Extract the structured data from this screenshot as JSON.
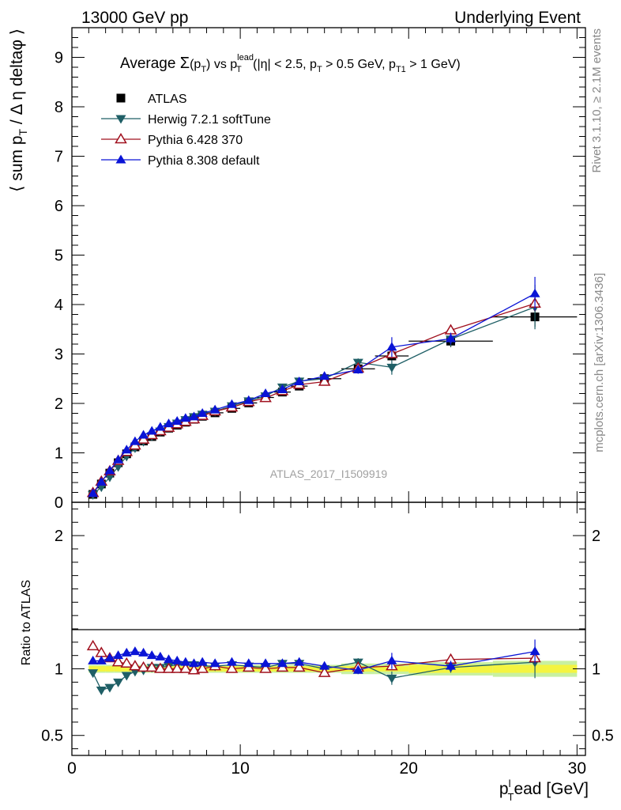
{
  "header": {
    "left": "13000 GeV pp",
    "right": "Underlying Event"
  },
  "side_labels": {
    "rivet": "Rivet 3.1.10, ≥ 2.1M events",
    "mcplots": "mcplots.cern.ch [arXiv:1306.3436]"
  },
  "watermark": "ATLAS_2017_I1509919",
  "chart_data": {
    "type": "scatter",
    "title": {
      "prefix": "Average ",
      "sigma": "Σ",
      "pt_open": "(p",
      "pt_sub": "T",
      "pt_close": ")",
      "vs": " vs p",
      "vs_sup": "lead",
      "vs_sub": "T",
      "cut1": " (|η| < 2.5, p",
      "cut1_sub": "T",
      "cut2": " > 0.5 GeV, p",
      "cut2_sub": "T1",
      "cut3": " > 1 GeV)"
    },
    "ylabel": {
      "main": "⟨ sum p",
      "sub": "T",
      "rest": " / Δ η deltaφ ⟩"
    },
    "ratio_ylabel": "Ratio to ATLAS",
    "xlabel": {
      "p": "p",
      "sup": "l",
      "sub": "T",
      "rest": "ead [GeV]"
    },
    "xlim": [
      0,
      30.5
    ],
    "ylim": [
      0,
      9.6
    ],
    "ratio_ylim": [
      0.35,
      2.25
    ],
    "x_ticks": [
      "0",
      "10",
      "20",
      "30"
    ],
    "y_ticks": [
      "0",
      "1",
      "2",
      "3",
      "4",
      "5",
      "6",
      "7",
      "8",
      "9"
    ],
    "ratio_ticks": [
      "0.5",
      "1",
      "2"
    ],
    "legend_position": "top-left",
    "x": [
      1.25,
      1.75,
      2.25,
      2.75,
      3.25,
      3.75,
      4.25,
      4.75,
      5.25,
      5.75,
      6.25,
      6.75,
      7.25,
      7.75,
      8.5,
      9.5,
      10.5,
      11.5,
      12.5,
      13.5,
      15.0,
      17.0,
      19.0,
      22.5,
      27.5
    ],
    "x_err": [
      0.25,
      0.25,
      0.25,
      0.25,
      0.25,
      0.25,
      0.25,
      0.25,
      0.25,
      0.25,
      0.25,
      0.25,
      0.25,
      0.25,
      0.5,
      0.5,
      0.5,
      0.5,
      0.5,
      0.5,
      1.0,
      1.0,
      1.0,
      2.5,
      2.5
    ],
    "series": [
      {
        "name": "ATLAS",
        "color": "#000000",
        "marker": "square",
        "values": [
          0.16,
          0.37,
          0.59,
          0.8,
          0.98,
          1.12,
          1.24,
          1.33,
          1.42,
          1.5,
          1.56,
          1.62,
          1.68,
          1.74,
          1.81,
          1.9,
          2.01,
          2.12,
          2.23,
          2.35,
          2.5,
          2.7,
          2.96,
          3.26,
          3.75
        ],
        "errors": [
          0.02,
          0.02,
          0.02,
          0.02,
          0.02,
          0.02,
          0.02,
          0.02,
          0.02,
          0.02,
          0.02,
          0.02,
          0.02,
          0.02,
          0.03,
          0.03,
          0.03,
          0.04,
          0.04,
          0.05,
          0.06,
          0.08,
          0.1,
          0.12,
          0.2
        ],
        "ratio": [
          1.0,
          1.0,
          1.0,
          1.0,
          1.0,
          1.0,
          1.0,
          1.0,
          1.0,
          1.0,
          1.0,
          1.0,
          1.0,
          1.0,
          1.0,
          1.0,
          1.0,
          1.0,
          1.0,
          1.0,
          1.0,
          1.0,
          1.0,
          1.0,
          1.0
        ]
      },
      {
        "name": "Herwig 7.2.1 softTune",
        "color": "#1f5f66",
        "marker": "triangle-down",
        "values": [
          0.155,
          0.31,
          0.51,
          0.72,
          0.93,
          1.1,
          1.23,
          1.34,
          1.44,
          1.53,
          1.6,
          1.67,
          1.73,
          1.78,
          1.84,
          1.95,
          2.05,
          2.15,
          2.33,
          2.45,
          2.5,
          2.83,
          2.73,
          3.3,
          3.95
        ],
        "errors": [
          0.01,
          0.01,
          0.01,
          0.01,
          0.01,
          0.01,
          0.01,
          0.01,
          0.01,
          0.01,
          0.01,
          0.01,
          0.02,
          0.02,
          0.02,
          0.03,
          0.03,
          0.04,
          0.04,
          0.05,
          0.06,
          0.08,
          0.15,
          0.15,
          0.45
        ],
        "ratio": [
          0.97,
          0.84,
          0.86,
          0.9,
          0.95,
          0.98,
          0.99,
          1.01,
          1.01,
          1.02,
          1.03,
          1.03,
          1.03,
          1.02,
          1.02,
          1.03,
          1.02,
          1.01,
          1.04,
          1.04,
          1.0,
          1.05,
          0.93,
          1.01,
          1.05
        ],
        "ratio_errors": [
          0.01,
          0.01,
          0.01,
          0.01,
          0.01,
          0.01,
          0.01,
          0.01,
          0.01,
          0.01,
          0.01,
          0.01,
          0.01,
          0.01,
          0.01,
          0.02,
          0.02,
          0.02,
          0.02,
          0.02,
          0.02,
          0.03,
          0.05,
          0.04,
          0.12
        ]
      },
      {
        "name": "Pythia 6.428 370",
        "color": "#a0101e",
        "marker": "triangle-open",
        "values": [
          0.19,
          0.42,
          0.63,
          0.84,
          1.02,
          1.15,
          1.27,
          1.36,
          1.44,
          1.51,
          1.58,
          1.63,
          1.68,
          1.75,
          1.84,
          1.92,
          2.03,
          2.11,
          2.25,
          2.38,
          2.44,
          2.71,
          3.0,
          3.48,
          4.02
        ],
        "errors": [
          0.01,
          0.01,
          0.01,
          0.01,
          0.01,
          0.01,
          0.01,
          0.01,
          0.01,
          0.01,
          0.01,
          0.01,
          0.02,
          0.02,
          0.02,
          0.03,
          0.03,
          0.04,
          0.04,
          0.05,
          0.06,
          0.07,
          0.09,
          0.11,
          0.15
        ],
        "ratio": [
          1.17,
          1.12,
          1.08,
          1.05,
          1.04,
          1.02,
          1.01,
          1.01,
          1.0,
          1.0,
          1.0,
          1.0,
          0.99,
          1.0,
          1.02,
          1.0,
          1.01,
          1.0,
          1.01,
          1.01,
          0.97,
          1.01,
          1.02,
          1.07,
          1.08
        ],
        "ratio_errors": [
          0.01,
          0.01,
          0.01,
          0.01,
          0.01,
          0.01,
          0.01,
          0.01,
          0.01,
          0.01,
          0.01,
          0.01,
          0.01,
          0.01,
          0.01,
          0.01,
          0.01,
          0.02,
          0.02,
          0.02,
          0.02,
          0.03,
          0.03,
          0.03,
          0.04
        ]
      },
      {
        "name": "Pythia 8.308 default",
        "color": "#0a14d6",
        "marker": "triangle-up",
        "values": [
          0.18,
          0.41,
          0.64,
          0.86,
          1.06,
          1.23,
          1.36,
          1.44,
          1.52,
          1.59,
          1.64,
          1.7,
          1.73,
          1.8,
          1.87,
          1.98,
          2.06,
          2.2,
          2.28,
          2.44,
          2.55,
          2.68,
          3.14,
          3.31,
          4.22
        ],
        "errors": [
          0.01,
          0.01,
          0.01,
          0.01,
          0.01,
          0.01,
          0.01,
          0.01,
          0.01,
          0.01,
          0.01,
          0.01,
          0.02,
          0.02,
          0.02,
          0.03,
          0.03,
          0.04,
          0.04,
          0.05,
          0.06,
          0.08,
          0.2,
          0.12,
          0.34
        ],
        "ratio": [
          1.06,
          1.06,
          1.08,
          1.1,
          1.12,
          1.13,
          1.12,
          1.1,
          1.09,
          1.07,
          1.06,
          1.05,
          1.04,
          1.05,
          1.04,
          1.05,
          1.04,
          1.04,
          1.04,
          1.05,
          1.02,
          0.99,
          1.06,
          1.02,
          1.13
        ],
        "ratio_errors": [
          0.01,
          0.01,
          0.01,
          0.01,
          0.01,
          0.01,
          0.01,
          0.01,
          0.01,
          0.01,
          0.01,
          0.01,
          0.01,
          0.01,
          0.01,
          0.02,
          0.02,
          0.02,
          0.02,
          0.02,
          0.02,
          0.03,
          0.06,
          0.04,
          0.09
        ]
      }
    ],
    "ratio_band": {
      "inner_color": "#f4f440",
      "outer_color": "#c8f0a0",
      "inner": [
        0.02,
        0.02,
        0.02,
        0.02,
        0.02,
        0.02,
        0.02,
        0.02,
        0.02,
        0.02,
        0.02,
        0.02,
        0.02,
        0.02,
        0.02,
        0.02,
        0.02,
        0.02,
        0.02,
        0.02,
        0.02,
        0.02,
        0.02,
        0.03,
        0.03
      ],
      "outer": [
        0.03,
        0.03,
        0.03,
        0.03,
        0.03,
        0.03,
        0.03,
        0.03,
        0.03,
        0.03,
        0.03,
        0.03,
        0.03,
        0.03,
        0.03,
        0.03,
        0.03,
        0.03,
        0.03,
        0.03,
        0.03,
        0.04,
        0.04,
        0.05,
        0.06
      ]
    }
  }
}
